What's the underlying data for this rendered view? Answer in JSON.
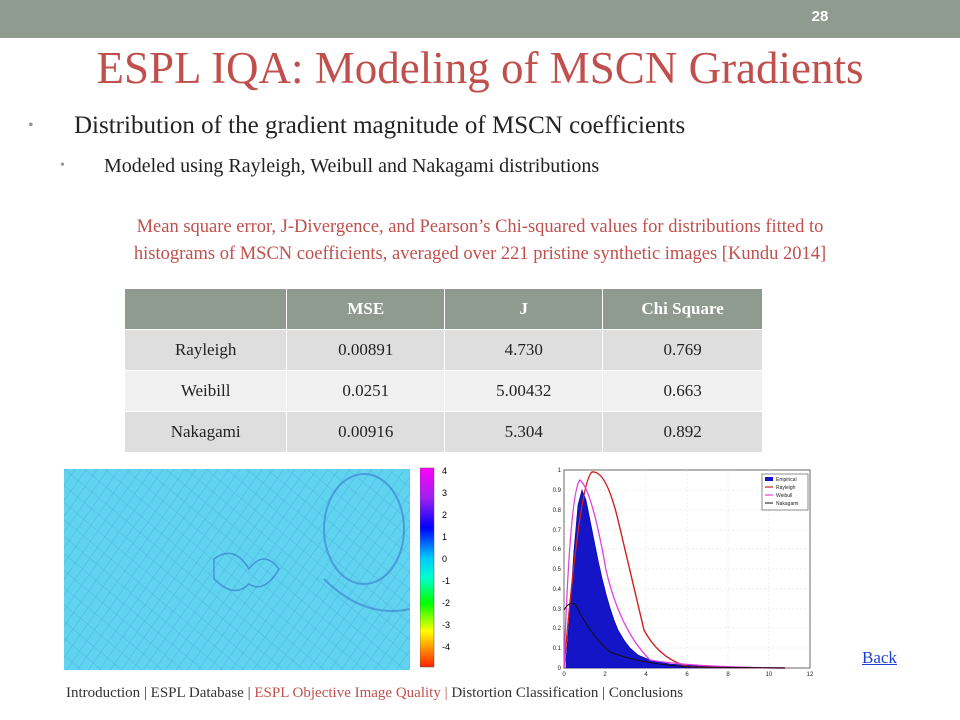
{
  "slide_number": "28",
  "title": "ESPL IQA: Modeling of MSCN Gradients",
  "bullets": {
    "level1": "Distribution of the gradient magnitude of MSCN coefficients",
    "level2": "Modeled using Rayleigh, Weibull and Nakagami distributions"
  },
  "caption": {
    "line1": "Mean square error, J-Divergence, and Pearson’s Chi-squared values for distributions fitted to",
    "line2": "histograms of MSCN coefficients, averaged over 221 pristine synthetic images [Kundu 2014]"
  },
  "table": {
    "headers": [
      "",
      "MSE",
      "J",
      "Chi Square"
    ],
    "rows": [
      [
        "Rayleigh",
        "0.00891",
        "4.730",
        "0.769"
      ],
      [
        "Weibill",
        "0.0251",
        "5.00432",
        "0.663"
      ],
      [
        "Nakagami",
        "0.00916",
        "5.304",
        "0.892"
      ]
    ]
  },
  "colorbar_ticks": [
    "4",
    "3",
    "2",
    "1",
    "0",
    "-1",
    "-2",
    "-3",
    "-4"
  ],
  "plot": {
    "y_ticks": [
      "1",
      "0.9",
      "0.8",
      "0.7",
      "0.6",
      "0.5",
      "0.4",
      "0.3",
      "0.2",
      "0.1",
      "0"
    ],
    "x_ticks": [
      "0",
      "2",
      "4",
      "6",
      "8",
      "10",
      "12"
    ],
    "legend": [
      "Empirical",
      "Rayleigh",
      "Weibull",
      "Nakagami"
    ]
  },
  "back_link": "Back",
  "footer": {
    "items": [
      {
        "label": "Introduction | ",
        "active": false
      },
      {
        "label": "ESPL Database | ",
        "active": false
      },
      {
        "label": "ESPL Objective Image Quality | ",
        "active": true
      },
      {
        "label": "Distortion Classification | ",
        "active": false
      },
      {
        "label": "Conclusions",
        "active": false
      }
    ]
  },
  "colors": {
    "accent": "#c0504d",
    "bar": "#8f9b8f",
    "link": "#1f3fd0"
  }
}
